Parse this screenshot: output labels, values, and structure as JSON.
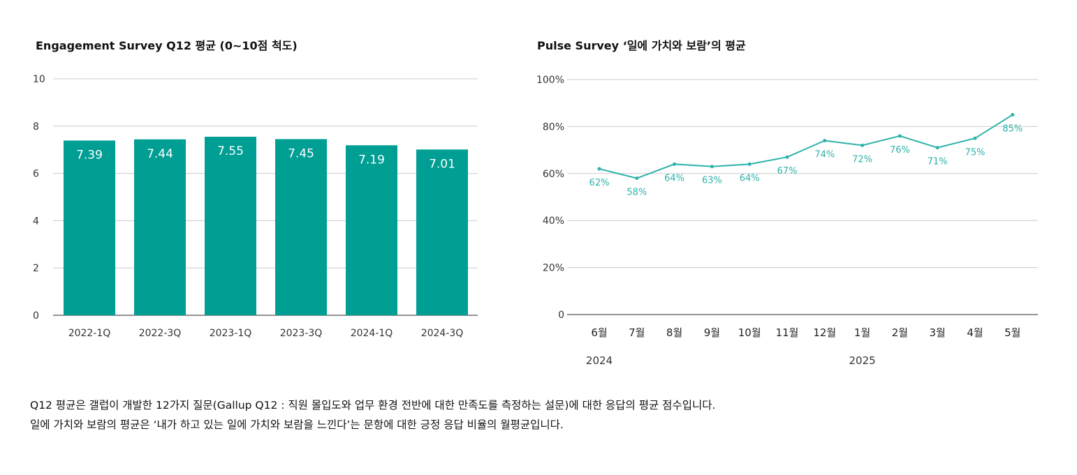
{
  "colors": {
    "bar": "#009E93",
    "line": "#2DB3AA",
    "grid": "#CCCCCC",
    "axis": "#555555"
  },
  "footnotes": {
    "line1": "Q12 평균은 갤럽이 개발한 12가지 질문(Gallup Q12 : 직원 몰입도와 업무 환경 전반에 대한 만족도를 측정하는 설문)에 대한 응답의 평균 점수입니다.",
    "line2": "일에 가치와 보람의 평균은 ‘내가 하고 있는 일에 가치와 보람을 느낀다’는 문항에 대한 긍정 응답 비율의 월평균입니다."
  },
  "chart_data": [
    {
      "type": "bar",
      "title": "Engagement Survey Q12 평균 (0~10점 척도)",
      "categories": [
        "2022-1Q",
        "2022-3Q",
        "2023-1Q",
        "2023-3Q",
        "2024-1Q",
        "2024-3Q"
      ],
      "values": [
        7.39,
        7.44,
        7.55,
        7.45,
        7.19,
        7.01
      ],
      "value_labels": [
        "7.39",
        "7.44",
        "7.55",
        "7.45",
        "7.19",
        "7.01"
      ],
      "yticks": [
        "0",
        "2",
        "4",
        "6",
        "8",
        "10"
      ],
      "ylim": [
        0,
        10
      ],
      "grid": true,
      "legend": "none"
    },
    {
      "type": "line",
      "title": "Pulse Survey ‘일에 가치와 보람’의 평균",
      "categories": [
        "6월",
        "7월",
        "8월",
        "9월",
        "10월",
        "11월",
        "12월",
        "1월",
        "2월",
        "3월",
        "4월",
        "5월"
      ],
      "year_labels": [
        "2024",
        "2025"
      ],
      "values": [
        62,
        58,
        64,
        63,
        64,
        67,
        74,
        72,
        76,
        71,
        75,
        85
      ],
      "value_labels": [
        "62%",
        "58%",
        "64%",
        "63%",
        "64%",
        "67%",
        "74%",
        "72%",
        "76%",
        "71%",
        "75%",
        "85%"
      ],
      "yticks": [
        "0",
        "20%",
        "40%",
        "60%",
        "80%",
        "100%"
      ],
      "ylim": [
        0,
        100
      ],
      "grid": true,
      "legend": "none"
    }
  ]
}
